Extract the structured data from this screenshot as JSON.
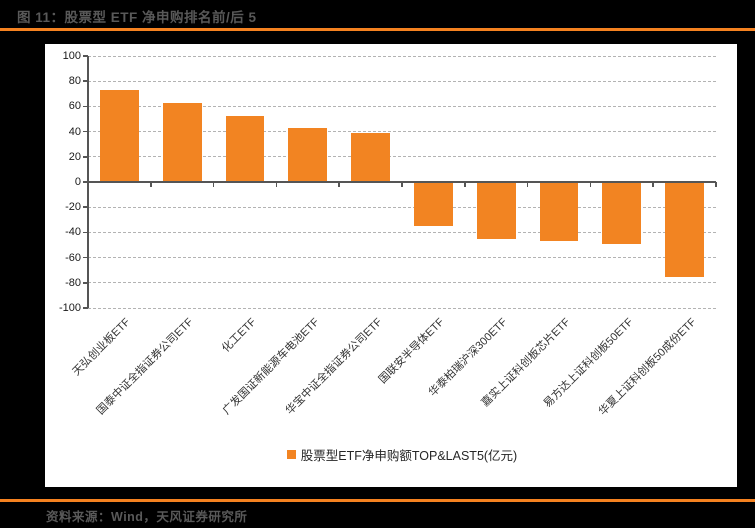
{
  "page": {
    "title": "图 11：股票型 ETF 净申购排名前/后 5",
    "source": "资料来源：Wind，天风证券研究所"
  },
  "colors": {
    "background": "#000000",
    "panel": "#ffffff",
    "accent_rule": "#f58220",
    "bar": "#f28422",
    "title_text": "#595959",
    "axis_text": "#1a1a1a",
    "gridline": "#b3b3b3",
    "axis_line": "#555555"
  },
  "chart_data": {
    "type": "bar",
    "title": "图 11：股票型 ETF 净申购排名前/后 5",
    "categories": [
      "天弘创业板ETF",
      "国泰中证全指证券公司ETF",
      "化工ETF",
      "广发国证新能源车电池ETF",
      "华宝中证全指证券公司ETF",
      "国联安半导体ETF",
      "华泰柏瑞沪深300ETF",
      "嘉实上证科创板芯片ETF",
      "易方达上证科创板50ETF",
      "华夏上证科创板50成份ETF"
    ],
    "values": [
      73,
      63,
      52,
      43,
      39,
      -35,
      -45,
      -47,
      -49,
      -75
    ],
    "legend": "股票型ETF净申购额TOP&LAST5(亿元)",
    "legend_position": "bottom",
    "xlabel": "",
    "ylabel": "",
    "ylim": [
      -100,
      100
    ],
    "yticks": [
      100,
      80,
      60,
      40,
      20,
      0,
      -20,
      -40,
      -60,
      -80,
      -100
    ],
    "grid": "horizontal-dashed",
    "bar_color": "#f28422"
  }
}
